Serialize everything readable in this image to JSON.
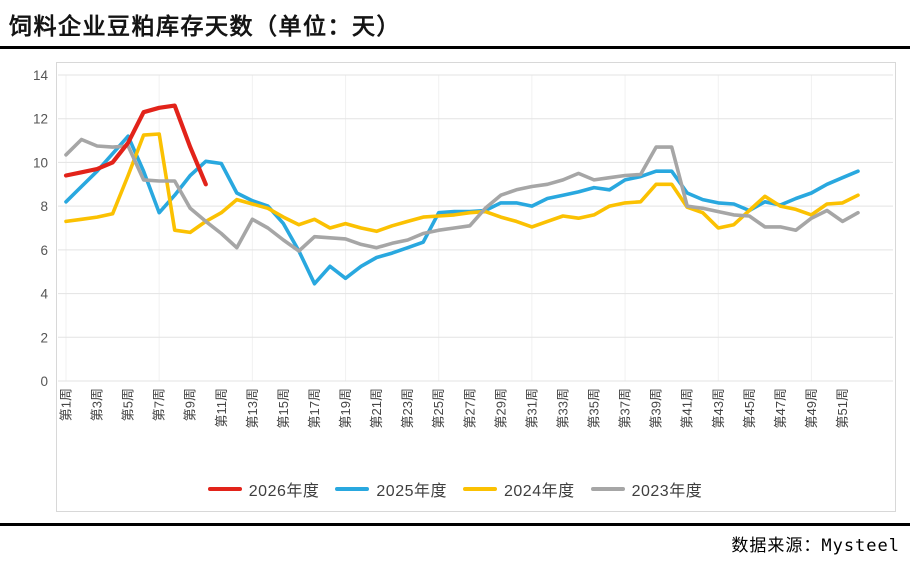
{
  "header": {
    "title": "饲料企业豆粕库存天数（单位：天）"
  },
  "footer": {
    "source": "数据来源：Mysteel"
  },
  "chart_data": {
    "type": "line",
    "title": "饲料企业豆粕库存天数（单位：天）",
    "unit": "天",
    "ylim": [
      0,
      14
    ],
    "yticks": [
      0,
      2,
      4,
      6,
      8,
      10,
      12,
      14
    ],
    "x_count": 52,
    "x_tick_labels": [
      "第1周",
      "第3周",
      "第5周",
      "第7周",
      "第9周",
      "第11周",
      "第13周",
      "第15周",
      "第17周",
      "第19周",
      "第21周",
      "第23周",
      "第25周",
      "第27周",
      "第29周",
      "第31周",
      "第33周",
      "第35周",
      "第37周",
      "第39周",
      "第41周",
      "第43周",
      "第45周",
      "第47周",
      "第49周",
      "第51周"
    ],
    "grid": {
      "horizontal": true,
      "vertical_week_marks": [
        1,
        7,
        13,
        19,
        25,
        31,
        37,
        43,
        49
      ]
    },
    "legend_position": "bottom",
    "series": [
      {
        "name": "2026年度",
        "color": "#e2231a",
        "start_week": 1,
        "values": [
          9.4,
          9.55,
          9.7,
          10.0,
          10.9,
          12.3,
          12.5,
          12.6,
          10.7,
          9.0
        ]
      },
      {
        "name": "2025年度",
        "color": "#29a8df",
        "start_week": 1,
        "values": [
          8.2,
          8.9,
          9.6,
          10.4,
          11.2,
          9.6,
          7.7,
          8.5,
          9.4,
          10.05,
          9.95,
          8.6,
          8.25,
          8.0,
          7.2,
          5.95,
          4.45,
          5.25,
          4.7,
          5.25,
          5.65,
          5.85,
          6.1,
          6.35,
          7.7,
          7.75,
          7.75,
          7.8,
          8.15,
          8.15,
          8.0,
          8.35,
          8.5,
          8.65,
          8.85,
          8.75,
          9.2,
          9.35,
          9.6,
          9.6,
          8.6,
          8.3,
          8.15,
          8.1,
          7.8,
          8.2,
          8.05,
          8.35,
          8.6,
          9.0,
          9.3,
          9.6
        ]
      },
      {
        "name": "2024年度",
        "color": "#fbc102",
        "start_week": 1,
        "values": [
          7.3,
          7.4,
          7.5,
          7.65,
          9.4,
          11.25,
          11.3,
          6.9,
          6.8,
          7.3,
          7.7,
          8.3,
          8.1,
          7.9,
          7.5,
          7.15,
          7.4,
          7.0,
          7.2,
          7.0,
          6.85,
          7.1,
          7.3,
          7.5,
          7.55,
          7.6,
          7.7,
          7.75,
          7.5,
          7.3,
          7.05,
          7.3,
          7.55,
          7.45,
          7.6,
          8.0,
          8.15,
          8.2,
          9.0,
          9.0,
          7.95,
          7.7,
          7.0,
          7.15,
          7.8,
          8.45,
          8.0,
          7.85,
          7.6,
          8.1,
          8.15,
          8.5
        ]
      },
      {
        "name": "2023年度",
        "color": "#a6a6a6",
        "start_week": 1,
        "values": [
          10.35,
          11.05,
          10.75,
          10.7,
          10.75,
          9.2,
          9.15,
          9.15,
          7.9,
          7.3,
          6.75,
          6.1,
          7.4,
          7.0,
          6.45,
          5.95,
          6.6,
          6.55,
          6.5,
          6.25,
          6.1,
          6.3,
          6.45,
          6.75,
          6.9,
          7.0,
          7.1,
          7.9,
          8.5,
          8.75,
          8.9,
          9.0,
          9.2,
          9.5,
          9.2,
          9.3,
          9.4,
          9.45,
          10.7,
          10.7,
          8.0,
          7.9,
          7.75,
          7.6,
          7.55,
          7.05,
          7.05,
          6.9,
          7.45,
          7.8,
          7.3,
          7.7
        ]
      }
    ],
    "style": {
      "gridline_color": "#e3e3e3",
      "vertical_gridline_color": "#f1f1f1",
      "axis_label_color": "#555555",
      "x_label_color": "#454545"
    }
  }
}
